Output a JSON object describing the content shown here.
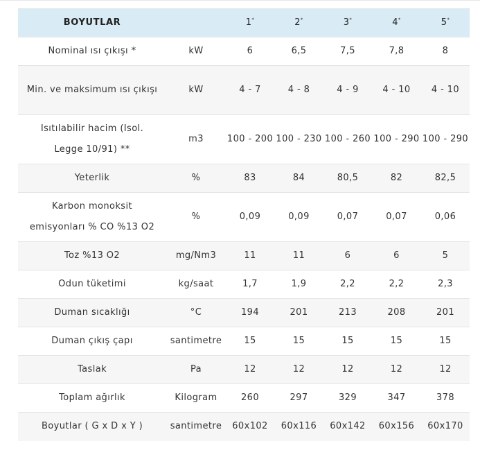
{
  "header": {
    "title": "BOYUTLAR",
    "unit": "",
    "sizes": [
      "1",
      "2",
      "3",
      "4",
      "5"
    ],
    "size_mark": "*"
  },
  "rows": [
    {
      "label": "Nominal ısı çıkışı *",
      "unit": "kW",
      "values": [
        "6",
        "6,5",
        "7,5",
        "7,8",
        "8"
      ],
      "tall": false
    },
    {
      "label": "Min. ve maksimum ısı çıkışı",
      "unit": "kW",
      "values": [
        "4 - 7",
        "4 - 8",
        "4 - 9",
        "4 - 10",
        "4 - 10"
      ],
      "tall": true
    },
    {
      "label": "Isıtılabilir hacim (Isol. Legge 10/91) **",
      "unit": "m3",
      "values": [
        "100 - 200",
        "100 - 230",
        "100 - 260",
        "100 - 290",
        "100 - 290"
      ],
      "tall": true
    },
    {
      "label": "Yeterlik",
      "unit": "%",
      "values": [
        "83",
        "84",
        "80,5",
        "82",
        "82,5"
      ],
      "tall": false
    },
    {
      "label": "Karbon monoksit emisyonları % CO %13 O2",
      "unit": "%",
      "values": [
        "0,09",
        "0,09",
        "0,07",
        "0,07",
        "0,06"
      ],
      "tall": true
    },
    {
      "label": "Toz %13 O2",
      "unit": "mg/Nm3",
      "values": [
        "11",
        "11",
        "6",
        "6",
        "5"
      ],
      "tall": false
    },
    {
      "label": "Odun tüketimi",
      "unit": "kg/saat",
      "values": [
        "1,7",
        "1,9",
        "2,2",
        "2,2",
        "2,3"
      ],
      "tall": false
    },
    {
      "label": "Duman sıcaklığı",
      "unit": "°C",
      "values": [
        "194",
        "201",
        "213",
        "208",
        "201"
      ],
      "tall": false
    },
    {
      "label": "Duman çıkış çapı",
      "unit": "santimetre",
      "values": [
        "15",
        "15",
        "15",
        "15",
        "15"
      ],
      "tall": false
    },
    {
      "label": "Taslak",
      "unit": "Pa",
      "values": [
        "12",
        "12",
        "12",
        "12",
        "12"
      ],
      "tall": false
    },
    {
      "label": "Toplam ağırlık",
      "unit": "Kilogram",
      "values": [
        "260",
        "297",
        "329",
        "347",
        "378"
      ],
      "tall": false
    },
    {
      "label": "Boyutlar ( G x D x Y )",
      "unit": "santimetre",
      "values": [
        "60x102",
        "60x116",
        "60x142",
        "60x156",
        "60x170"
      ],
      "tall": false
    }
  ]
}
